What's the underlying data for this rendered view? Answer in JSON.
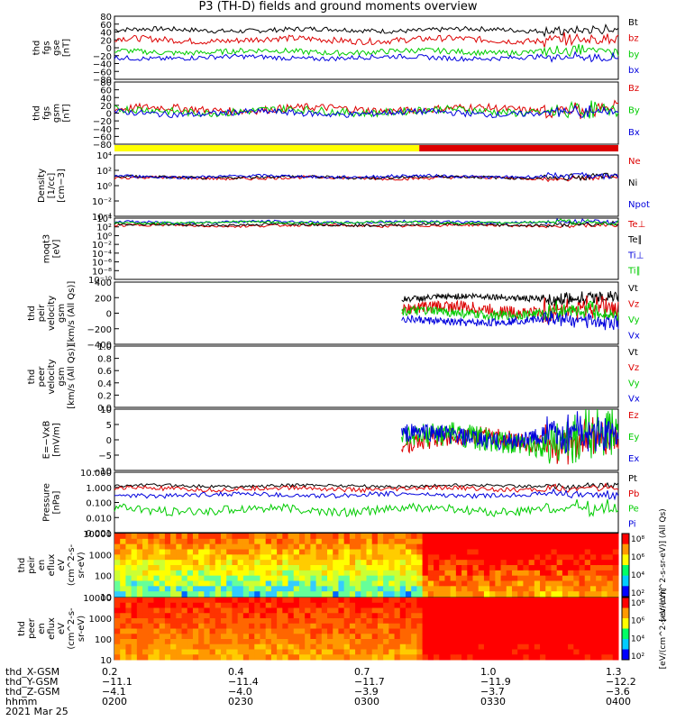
{
  "title": "P3 (TH-D) fields and ground moments overview",
  "colors": {
    "black": "#000000",
    "red": "#dd0000",
    "green": "#00cc00",
    "blue": "#0000dd",
    "yellow": "#ffff00"
  },
  "chart_data": [
    {
      "type": "line",
      "ylabel": [
        "thd",
        "fgs",
        "gse",
        "[nT]"
      ],
      "ylim": [
        -80,
        80
      ],
      "yticks": [
        "80",
        "60",
        "40",
        "20",
        "0",
        "−20",
        "−40",
        "−60",
        "−80"
      ],
      "series": [
        {
          "name": "Bt",
          "color": "#000000",
          "base": 45,
          "amp": 6
        },
        {
          "name": "bz",
          "color": "#dd0000",
          "base": 20,
          "amp": 8
        },
        {
          "name": "by",
          "color": "#00cc00",
          "base": -10,
          "amp": 7
        },
        {
          "name": "bx",
          "color": "#0000dd",
          "base": -25,
          "amp": 6
        }
      ]
    },
    {
      "type": "line",
      "ylabel": [
        "thd",
        "fgs",
        "gsm",
        "[nT]"
      ],
      "ylim": [
        -80,
        80
      ],
      "yticks": [
        "80",
        "60",
        "40",
        "20",
        "0",
        "−20",
        "−40",
        "−60",
        "−80"
      ],
      "series": [
        {
          "name": "Bz",
          "color": "#dd0000",
          "base": 10,
          "amp": 10
        },
        {
          "name": "By",
          "color": "#00cc00",
          "base": 5,
          "amp": 10
        },
        {
          "name": "Bx",
          "color": "#0000dd",
          "base": 0,
          "amp": 8
        }
      ]
    },
    {
      "type": "bar",
      "legend": "mode_bar",
      "colors": [
        "#ffff00",
        "#dd0000"
      ],
      "split_time": "0310"
    },
    {
      "type": "line",
      "ylabel": [
        "Density",
        "[1/cc]",
        "[cm−3]"
      ],
      "log": true,
      "ylim": [
        -4,
        4
      ],
      "yticks": [
        "10⁴",
        "10²",
        "10⁰",
        "10⁻²",
        "10⁻⁴"
      ],
      "series": [
        {
          "name": "Ne",
          "color": "#dd0000",
          "base": 1.0,
          "amp": 0.2
        },
        {
          "name": "Ni",
          "color": "#000000",
          "base": 1.1,
          "amp": 0.2
        },
        {
          "name": "Npot",
          "color": "#0000dd",
          "base": 1.2,
          "amp": 0.2
        }
      ]
    },
    {
      "type": "line",
      "ylabel": [
        "moqt3",
        "[eV]"
      ],
      "log": true,
      "ylim": [
        -10,
        4
      ],
      "yticks": [
        "10⁴",
        "10²",
        "10⁰",
        "10⁻²",
        "10⁻⁴",
        "10⁻⁶",
        "10⁻⁸",
        "10⁻¹⁰"
      ],
      "series": [
        {
          "name": "Te⊥",
          "color": "#dd0000",
          "base": 2.3,
          "amp": 0.3
        },
        {
          "name": "Te∥",
          "color": "#000000",
          "base": 2.5,
          "amp": 0.3
        },
        {
          "name": "Ti⊥",
          "color": "#0000dd",
          "base": 3.1,
          "amp": 0.3
        },
        {
          "name": "Ti∥",
          "color": "#00cc00",
          "base": 3.0,
          "amp": 0.3
        }
      ]
    },
    {
      "type": "line",
      "ylabel": [
        "thd",
        "peir",
        "velocity",
        "gsm",
        "[km/s (All Qs)]"
      ],
      "ylim": [
        -400,
        400
      ],
      "yticks": [
        "400",
        "200",
        "0",
        "−200",
        "−400"
      ],
      "start_frac": 0.57,
      "series": [
        {
          "name": "Vt",
          "color": "#000000",
          "base": 200,
          "amp": 40
        },
        {
          "name": "Vz",
          "color": "#dd0000",
          "base": 50,
          "amp": 80
        },
        {
          "name": "Vy",
          "color": "#00cc00",
          "base": 0,
          "amp": 60
        },
        {
          "name": "Vx",
          "color": "#0000dd",
          "base": -100,
          "amp": 50
        }
      ]
    },
    {
      "type": "line",
      "ylabel": [
        "thd",
        "peer",
        "velocity",
        "gsm",
        "[km/s (All Qs)]"
      ],
      "ylim": [
        0,
        1
      ],
      "yticks": [
        "1.0",
        "0.8",
        "0.6",
        "0.4",
        "0.2",
        "0.0"
      ],
      "series": [],
      "legend": [
        {
          "name": "Vt",
          "color": "#000000"
        },
        {
          "name": "Vz",
          "color": "#dd0000"
        },
        {
          "name": "Vy",
          "color": "#00cc00"
        },
        {
          "name": "Vx",
          "color": "#0000dd"
        }
      ]
    },
    {
      "type": "line",
      "ylabel": [
        "E=−VxB",
        "[mV/m]"
      ],
      "ylim": [
        -10,
        10
      ],
      "yticks": [
        "10",
        "5",
        "0",
        "−5",
        "−10"
      ],
      "start_frac": 0.57,
      "series": [
        {
          "name": "Ez",
          "color": "#dd0000",
          "base": 0,
          "amp": 3
        },
        {
          "name": "Ey",
          "color": "#00cc00",
          "base": 0,
          "amp": 4
        },
        {
          "name": "Ex",
          "color": "#0000dd",
          "base": 1,
          "amp": 3
        }
      ]
    },
    {
      "type": "line",
      "ylabel": [
        "Pressure",
        "[nPa]"
      ],
      "log": true,
      "ylim": [
        -3,
        1
      ],
      "yticks": [
        "10.000",
        "1.000",
        "0.100",
        "0.010",
        "0.001"
      ],
      "series": [
        {
          "name": "Pt",
          "color": "#000000",
          "base": 0.1,
          "amp": 0.1
        },
        {
          "name": "Pb",
          "color": "#dd0000",
          "base": -0.1,
          "amp": 0.15
        },
        {
          "name": "Pe",
          "color": "#00cc00",
          "base": -1.5,
          "amp": 0.3
        },
        {
          "name": "Pi",
          "color": "#0000dd",
          "base": -0.5,
          "amp": 0.15
        }
      ]
    },
    {
      "type": "heatmap",
      "ylabel": [
        "thd",
        "peir",
        "en",
        "eflux",
        "eV",
        "(cm^2-s-",
        "sr-eV)"
      ],
      "log": true,
      "ylim": [
        5,
        20000
      ],
      "yticks": [
        "10000",
        "1000",
        "100",
        "10"
      ],
      "colorbar": {
        "label": "[eV/(cm^2-s-sr-eV)] (All Qs)",
        "ticks": [
          "10⁸",
          "10⁶",
          "10⁴",
          "10²"
        ]
      }
    },
    {
      "type": "heatmap",
      "ylabel": [
        "thd",
        "peer",
        "en",
        "eflux",
        "eV",
        "(cm^2-s-",
        "sr-eV)"
      ],
      "log": true,
      "ylim": [
        5,
        20000
      ],
      "yticks": [
        "10000",
        "1000",
        "100",
        "10"
      ],
      "colorbar": {
        "label": "[eV/(cm^2-s-sr-eV)]",
        "ticks": [
          "10⁸",
          "10⁶",
          "10⁴",
          "10²"
        ]
      }
    }
  ],
  "axis": {
    "rows": [
      {
        "label": "thd_X-GSM",
        "values": [
          "0.2",
          "0.4",
          "0.7",
          "1.0",
          "1.3"
        ]
      },
      {
        "label": "thd_Y-GSM",
        "values": [
          "−11.1",
          "−11.4",
          "−11.7",
          "−11.9",
          "−12.2"
        ]
      },
      {
        "label": "thd_Z-GSM",
        "values": [
          "−4.1",
          "−4.0",
          "−3.9",
          "−3.7",
          "−3.6"
        ]
      },
      {
        "label": "hhmm",
        "values": [
          "0200",
          "0230",
          "0300",
          "0330",
          "0400"
        ]
      }
    ],
    "date": "2021 Mar 25"
  }
}
